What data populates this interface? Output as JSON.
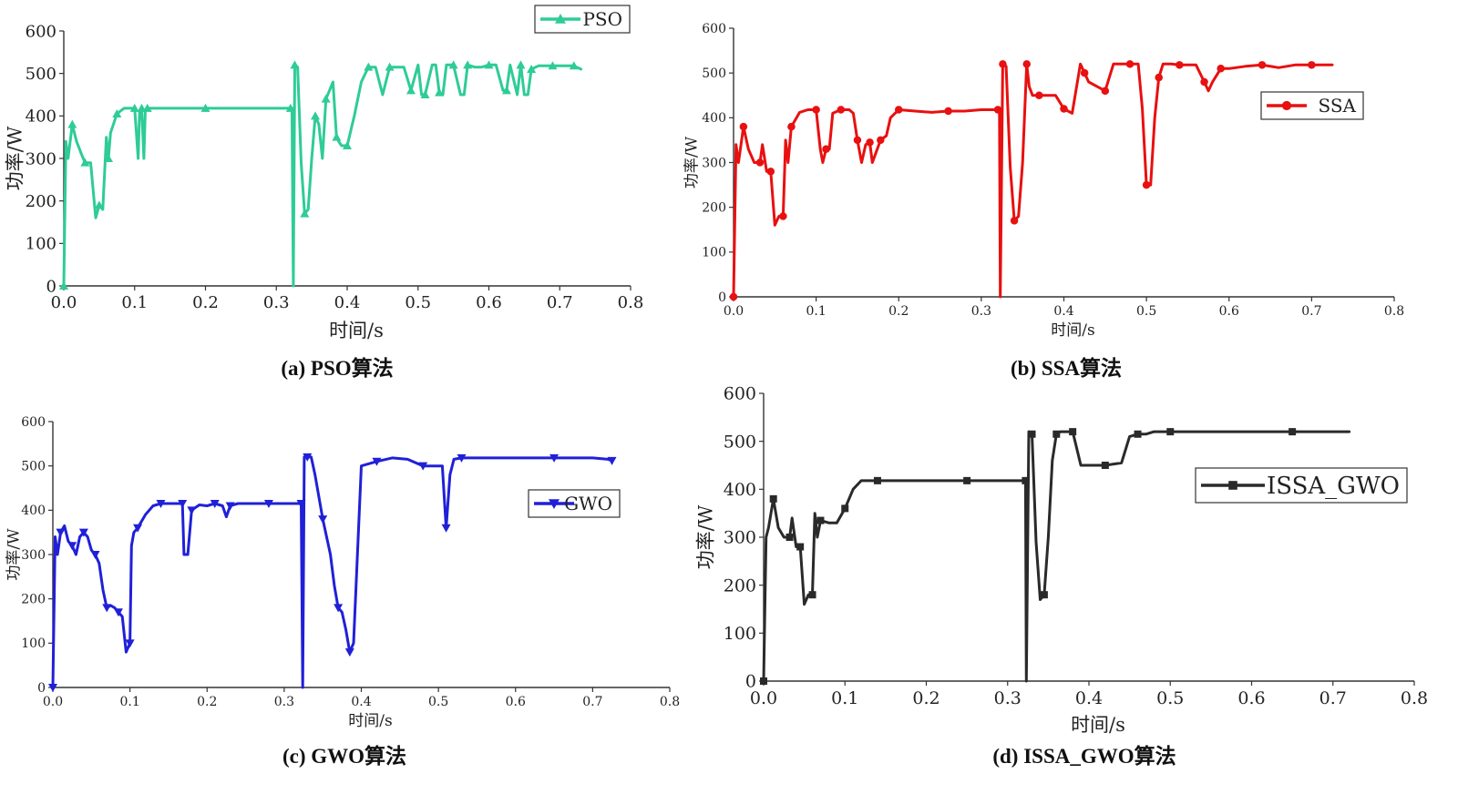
{
  "panels": [
    {
      "caption": "(a) PSO算法",
      "xlabel": "时间/s",
      "ylabel": "功率/W",
      "legend": "PSO",
      "color": "#2ecc96",
      "marker": "triangle-up",
      "legend_position": "top-right",
      "xlim": [
        0,
        0.8
      ],
      "ylim": [
        0,
        600
      ],
      "xticks": [
        "0.0",
        "0.1",
        "0.2",
        "0.3",
        "0.4",
        "0.5",
        "0.6",
        "0.7",
        "0.8"
      ],
      "yticks": [
        "0",
        "100",
        "200",
        "300",
        "400",
        "500",
        "600"
      ]
    },
    {
      "caption": "(b) SSA算法",
      "xlabel": "时间/s",
      "ylabel": "功率/W",
      "legend": "SSA",
      "color": "#e81010",
      "marker": "circle",
      "legend_position": "upper-right",
      "xlim": [
        0,
        0.8
      ],
      "ylim": [
        0,
        600
      ],
      "xticks": [
        "0.0",
        "0.1",
        "0.2",
        "0.3",
        "0.4",
        "0.5",
        "0.6",
        "0.7",
        "0.8"
      ],
      "yticks": [
        "0",
        "100",
        "200",
        "300",
        "400",
        "500",
        "600"
      ]
    },
    {
      "caption": "(c) GWO算法",
      "xlabel": "时间/s",
      "ylabel": "功率/W",
      "legend": "GWO",
      "color": "#2020d8",
      "marker": "triangle-down",
      "legend_position": "right",
      "xlim": [
        0,
        0.8
      ],
      "ylim": [
        0,
        600
      ],
      "xticks": [
        "0.0",
        "0.1",
        "0.2",
        "0.3",
        "0.4",
        "0.5",
        "0.6",
        "0.7",
        "0.8"
      ],
      "yticks": [
        "0",
        "100",
        "200",
        "300",
        "400",
        "500",
        "600"
      ]
    },
    {
      "caption": "(d) ISSA_GWO算法",
      "xlabel": "时间/s",
      "ylabel": "功率/W",
      "legend": "ISSA_GWO",
      "color": "#2a2a2a",
      "marker": "square",
      "legend_position": "upper-right",
      "xlim": [
        0,
        0.8
      ],
      "ylim": [
        0,
        600
      ],
      "xticks": [
        "0.0",
        "0.1",
        "0.2",
        "0.3",
        "0.4",
        "0.5",
        "0.6",
        "0.7",
        "0.8"
      ],
      "yticks": [
        "0",
        "100",
        "200",
        "300",
        "400",
        "500",
        "600"
      ]
    }
  ],
  "chart_data": [
    {
      "type": "line",
      "title": "(a) PSO算法",
      "xlabel": "时间/s",
      "ylabel": "功率/W",
      "xlim": [
        0,
        0.8
      ],
      "ylim": [
        0,
        600
      ],
      "series": [
        {
          "name": "PSO",
          "x": [
            0,
            0.003,
            0.006,
            0.012,
            0.018,
            0.025,
            0.03,
            0.038,
            0.045,
            0.05,
            0.055,
            0.06,
            0.063,
            0.066,
            0.07,
            0.075,
            0.085,
            0.095,
            0.1,
            0.105,
            0.107,
            0.11,
            0.113,
            0.115,
            0.118,
            0.12,
            0.14,
            0.2,
            0.25,
            0.3,
            0.32,
            0.322,
            0.324,
            0.326,
            0.33,
            0.335,
            0.34,
            0.345,
            0.35,
            0.355,
            0.36,
            0.365,
            0.37,
            0.375,
            0.38,
            0.385,
            0.388,
            0.392,
            0.4,
            0.41,
            0.42,
            0.43,
            0.44,
            0.45,
            0.46,
            0.47,
            0.48,
            0.49,
            0.5,
            0.505,
            0.51,
            0.52,
            0.525,
            0.53,
            0.535,
            0.54,
            0.55,
            0.56,
            0.565,
            0.57,
            0.58,
            0.59,
            0.6,
            0.61,
            0.62,
            0.625,
            0.63,
            0.64,
            0.645,
            0.65,
            0.655,
            0.66,
            0.67,
            0.68,
            0.69,
            0.7,
            0.71,
            0.72,
            0.73
          ],
          "y": [
            0,
            340,
            300,
            380,
            340,
            310,
            290,
            290,
            160,
            190,
            180,
            350,
            300,
            360,
            380,
            405,
            418,
            418,
            418,
            300,
            410,
            418,
            300,
            410,
            418,
            418,
            418,
            418,
            418,
            418,
            418,
            418,
            0,
            520,
            515,
            290,
            170,
            180,
            300,
            400,
            380,
            300,
            440,
            460,
            480,
            350,
            340,
            330,
            330,
            400,
            480,
            515,
            515,
            450,
            515,
            515,
            515,
            460,
            520,
            450,
            450,
            520,
            520,
            455,
            450,
            520,
            520,
            450,
            450,
            520,
            515,
            515,
            520,
            520,
            460,
            460,
            520,
            450,
            520,
            450,
            450,
            510,
            518,
            518,
            518,
            518,
            518,
            518,
            510
          ]
        }
      ]
    },
    {
      "type": "line",
      "title": "(b) SSA算法",
      "xlabel": "时间/s",
      "ylabel": "功率/W",
      "xlim": [
        0,
        0.8
      ],
      "ylim": [
        0,
        600
      ],
      "series": [
        {
          "name": "SSA",
          "x": [
            0,
            0.003,
            0.006,
            0.012,
            0.018,
            0.025,
            0.032,
            0.035,
            0.04,
            0.045,
            0.05,
            0.055,
            0.06,
            0.063,
            0.066,
            0.07,
            0.08,
            0.09,
            0.1,
            0.105,
            0.108,
            0.112,
            0.116,
            0.12,
            0.13,
            0.14,
            0.145,
            0.15,
            0.155,
            0.16,
            0.165,
            0.168,
            0.172,
            0.178,
            0.185,
            0.19,
            0.2,
            0.22,
            0.24,
            0.26,
            0.28,
            0.3,
            0.32,
            0.322,
            0.323,
            0.326,
            0.33,
            0.335,
            0.34,
            0.345,
            0.35,
            0.355,
            0.358,
            0.362,
            0.37,
            0.38,
            0.39,
            0.4,
            0.41,
            0.42,
            0.425,
            0.43,
            0.44,
            0.45,
            0.46,
            0.47,
            0.48,
            0.49,
            0.495,
            0.5,
            0.505,
            0.51,
            0.515,
            0.52,
            0.53,
            0.54,
            0.55,
            0.56,
            0.57,
            0.575,
            0.58,
            0.59,
            0.6,
            0.62,
            0.64,
            0.66,
            0.68,
            0.7,
            0.72,
            0.725
          ],
          "y": [
            0,
            340,
            300,
            380,
            330,
            300,
            300,
            340,
            280,
            280,
            160,
            180,
            180,
            350,
            300,
            380,
            412,
            418,
            418,
            330,
            300,
            330,
            330,
            410,
            418,
            418,
            410,
            350,
            300,
            340,
            345,
            300,
            320,
            350,
            360,
            400,
            418,
            415,
            412,
            415,
            415,
            418,
            418,
            418,
            0,
            520,
            515,
            290,
            170,
            180,
            300,
            520,
            470,
            450,
            450,
            450,
            450,
            420,
            410,
            520,
            500,
            480,
            470,
            460,
            520,
            520,
            520,
            520,
            420,
            250,
            250,
            400,
            490,
            520,
            520,
            518,
            518,
            518,
            480,
            460,
            480,
            510,
            510,
            515,
            518,
            512,
            518,
            518,
            518,
            518
          ]
        }
      ]
    },
    {
      "type": "line",
      "title": "(c) GWO算法",
      "xlabel": "时间/s",
      "ylabel": "功率/W",
      "xlim": [
        0,
        0.8
      ],
      "ylim": [
        0,
        600
      ],
      "series": [
        {
          "name": "GWO",
          "x": [
            0,
            0.003,
            0.006,
            0.01,
            0.015,
            0.02,
            0.025,
            0.03,
            0.035,
            0.04,
            0.045,
            0.05,
            0.055,
            0.06,
            0.065,
            0.07,
            0.075,
            0.08,
            0.085,
            0.09,
            0.095,
            0.1,
            0.102,
            0.105,
            0.11,
            0.12,
            0.13,
            0.14,
            0.15,
            0.16,
            0.168,
            0.17,
            0.175,
            0.18,
            0.19,
            0.2,
            0.21,
            0.22,
            0.225,
            0.23,
            0.24,
            0.26,
            0.28,
            0.3,
            0.32,
            0.322,
            0.324,
            0.326,
            0.33,
            0.335,
            0.34,
            0.35,
            0.36,
            0.365,
            0.37,
            0.375,
            0.38,
            0.385,
            0.39,
            0.4,
            0.42,
            0.44,
            0.46,
            0.48,
            0.5,
            0.505,
            0.51,
            0.515,
            0.52,
            0.53,
            0.56,
            0.6,
            0.65,
            0.7,
            0.72,
            0.725
          ],
          "y": [
            0,
            340,
            300,
            350,
            365,
            330,
            320,
            300,
            340,
            350,
            340,
            310,
            300,
            280,
            220,
            180,
            185,
            180,
            170,
            160,
            80,
            100,
            320,
            350,
            360,
            390,
            410,
            415,
            415,
            415,
            415,
            300,
            300,
            400,
            412,
            410,
            415,
            410,
            385,
            410,
            415,
            415,
            415,
            415,
            415,
            415,
            0,
            520,
            520,
            520,
            480,
            380,
            300,
            230,
            180,
            170,
            130,
            80,
            100,
            500,
            510,
            518,
            515,
            500,
            500,
            500,
            360,
            480,
            515,
            518,
            518,
            518,
            518,
            518,
            515,
            512
          ]
        }
      ]
    },
    {
      "type": "line",
      "title": "(d) ISSA_GWO算法",
      "xlabel": "时间/s",
      "ylabel": "功率/W",
      "xlim": [
        0,
        0.8
      ],
      "ylim": [
        0,
        600
      ],
      "series": [
        {
          "name": "ISSA_GWO",
          "x": [
            0,
            0.003,
            0.006,
            0.012,
            0.018,
            0.025,
            0.032,
            0.035,
            0.04,
            0.045,
            0.05,
            0.055,
            0.06,
            0.063,
            0.066,
            0.07,
            0.08,
            0.09,
            0.1,
            0.11,
            0.12,
            0.14,
            0.16,
            0.2,
            0.25,
            0.3,
            0.32,
            0.322,
            0.323,
            0.326,
            0.33,
            0.335,
            0.34,
            0.345,
            0.35,
            0.355,
            0.36,
            0.365,
            0.37,
            0.38,
            0.39,
            0.4,
            0.42,
            0.44,
            0.45,
            0.46,
            0.47,
            0.48,
            0.5,
            0.55,
            0.6,
            0.65,
            0.7,
            0.72
          ],
          "y": [
            0,
            300,
            320,
            380,
            320,
            300,
            300,
            340,
            280,
            280,
            160,
            180,
            180,
            350,
            300,
            335,
            330,
            330,
            360,
            400,
            418,
            418,
            418,
            418,
            418,
            418,
            418,
            418,
            0,
            520,
            515,
            290,
            170,
            180,
            300,
            460,
            515,
            520,
            520,
            520,
            450,
            450,
            450,
            455,
            510,
            515,
            515,
            520,
            520,
            520,
            520,
            520,
            520,
            520
          ]
        }
      ]
    }
  ]
}
